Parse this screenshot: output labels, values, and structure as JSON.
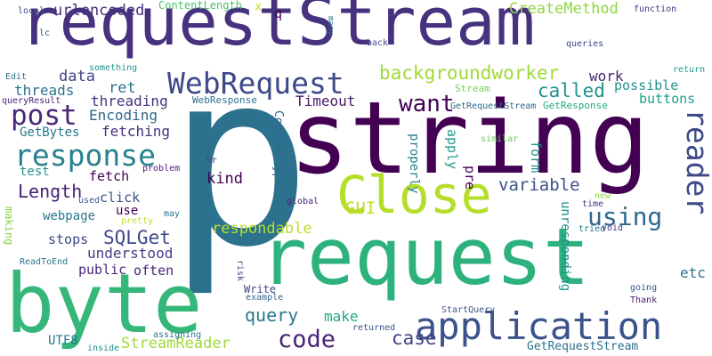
{
  "words": [
    {
      "text": "requestStream",
      "color": "#46327e"
    },
    {
      "text": "p",
      "color": "#2c728e"
    },
    {
      "text": "string",
      "color": "#440154"
    },
    {
      "text": "request",
      "color": "#2db27d"
    },
    {
      "text": "byte",
      "color": "#35b779"
    },
    {
      "text": "Close",
      "color": "#b5de2b"
    },
    {
      "text": "application",
      "color": "#3b528b"
    },
    {
      "text": "WebRequest",
      "color": "#3e4989"
    },
    {
      "text": "response",
      "color": "#26828e"
    },
    {
      "text": "post",
      "color": "#482878"
    },
    {
      "text": "reader",
      "color": "#3e4989"
    },
    {
      "text": "code",
      "color": "#482475"
    },
    {
      "text": "using",
      "color": "#31688e"
    },
    {
      "text": "backgroundworker",
      "color": "#a0da39"
    },
    {
      "text": "called",
      "color": "#21918c"
    },
    {
      "text": "want",
      "color": "#440154"
    },
    {
      "text": "GUI",
      "color": "#bddf26"
    },
    {
      "text": "variable",
      "color": "#3b528b"
    },
    {
      "text": "Length",
      "color": "#482173"
    },
    {
      "text": "SQLGet",
      "color": "#3e4989"
    },
    {
      "text": "respondable",
      "color": "#b8de29"
    },
    {
      "text": "StreamReader",
      "color": "#a0da39"
    },
    {
      "text": "query",
      "color": "#2a788e"
    },
    {
      "text": "case",
      "color": "#414487"
    },
    {
      "text": "urlencoded",
      "color": "#46327e"
    },
    {
      "text": "CreateMethod",
      "color": "#90d743"
    },
    {
      "text": "data",
      "color": "#414487"
    },
    {
      "text": "ret",
      "color": "#2c728e"
    },
    {
      "text": "threads",
      "color": "#2c728e"
    },
    {
      "text": "threading",
      "color": "#46327e"
    },
    {
      "text": "work",
      "color": "#482475"
    },
    {
      "text": "possible",
      "color": "#21918c"
    },
    {
      "text": "buttons",
      "color": "#1f9e89"
    },
    {
      "text": "Timeout",
      "color": "#481a6c"
    },
    {
      "text": "Encoding",
      "color": "#31688e"
    },
    {
      "text": "GetBytes",
      "color": "#2a788e"
    },
    {
      "text": "fetching",
      "color": "#46327e"
    },
    {
      "text": "test",
      "color": "#21918c"
    },
    {
      "text": "fetch",
      "color": "#440154"
    },
    {
      "text": "kind",
      "color": "#440154"
    },
    {
      "text": "click",
      "color": "#3b528b"
    },
    {
      "text": "use",
      "color": "#440154"
    },
    {
      "text": "webpage",
      "color": "#2a788e"
    },
    {
      "text": "stops",
      "color": "#3e4989"
    },
    {
      "text": "understood",
      "color": "#433e85"
    },
    {
      "text": "public",
      "color": "#482878"
    },
    {
      "text": "often",
      "color": "#482878"
    },
    {
      "text": "make",
      "color": "#22a884"
    },
    {
      "text": "UTF8",
      "color": "#2a788e"
    },
    {
      "text": "etc",
      "color": "#2c728e"
    },
    {
      "text": "Write",
      "color": "#3e4989"
    },
    {
      "text": "form",
      "color": "#21918c"
    },
    {
      "text": "apply",
      "color": "#1f9e89"
    },
    {
      "text": "pre",
      "color": "#440154"
    },
    {
      "text": "properly",
      "color": "#26828e"
    },
    {
      "text": "ContentType",
      "color": "#31688e"
    },
    {
      "text": "unresponding",
      "color": "#21918c"
    },
    {
      "text": "making",
      "color": "#86d549"
    },
    {
      "text": "ContentLength",
      "color": "#4ac16d"
    },
    {
      "text": "x",
      "color": "#c2df23"
    },
    {
      "text": "q",
      "color": "#440154"
    },
    {
      "text": "local",
      "color": "#3b528b"
    },
    {
      "text": "many",
      "color": "#2c728e"
    },
    {
      "text": "function",
      "color": "#46327e"
    },
    {
      "text": "back",
      "color": "#3e4989"
    },
    {
      "text": "queries",
      "color": "#3e4989"
    },
    {
      "text": "lc",
      "color": "#3e4989"
    },
    {
      "text": "something",
      "color": "#21918c"
    },
    {
      "text": "return",
      "color": "#1f9e89"
    },
    {
      "text": "Edit",
      "color": "#2c728e"
    },
    {
      "text": "queryResult",
      "color": "#482878"
    },
    {
      "text": "Stream",
      "color": "#7ad151"
    },
    {
      "text": "GetRequestStream",
      "color": "#31688e"
    },
    {
      "text": "GetResponse",
      "color": "#22a884"
    },
    {
      "text": "WebResponse",
      "color": "#2c728e"
    },
    {
      "text": "similar",
      "color": "#6ece58"
    },
    {
      "text": "hr",
      "color": "#3e4989"
    },
    {
      "text": "problem",
      "color": "#482475"
    },
    {
      "text": "used",
      "color": "#38598c"
    },
    {
      "text": "new",
      "color": "#95d840"
    },
    {
      "text": "time",
      "color": "#46327e"
    },
    {
      "text": "pretty",
      "color": "#bddf26"
    },
    {
      "text": "may",
      "color": "#2a788e"
    },
    {
      "text": "tried",
      "color": "#2a788e"
    },
    {
      "text": "void",
      "color": "#443983"
    },
    {
      "text": "global",
      "color": "#482878"
    },
    {
      "text": "ReadToEnd",
      "color": "#2c728e"
    },
    {
      "text": "risk",
      "color": "#3e4989"
    },
    {
      "text": "example",
      "color": "#31688e"
    },
    {
      "text": "going",
      "color": "#3b528b"
    },
    {
      "text": "Thank",
      "color": "#482173"
    },
    {
      "text": "StartQuery",
      "color": "#3b528b"
    },
    {
      "text": "assigning",
      "color": "#2c728e"
    },
    {
      "text": "inside",
      "color": "#21918c"
    },
    {
      "text": "returned",
      "color": "#3b528b"
    },
    {
      "text": "GetRequestStream",
      "color": "#2c728e"
    }
  ]
}
